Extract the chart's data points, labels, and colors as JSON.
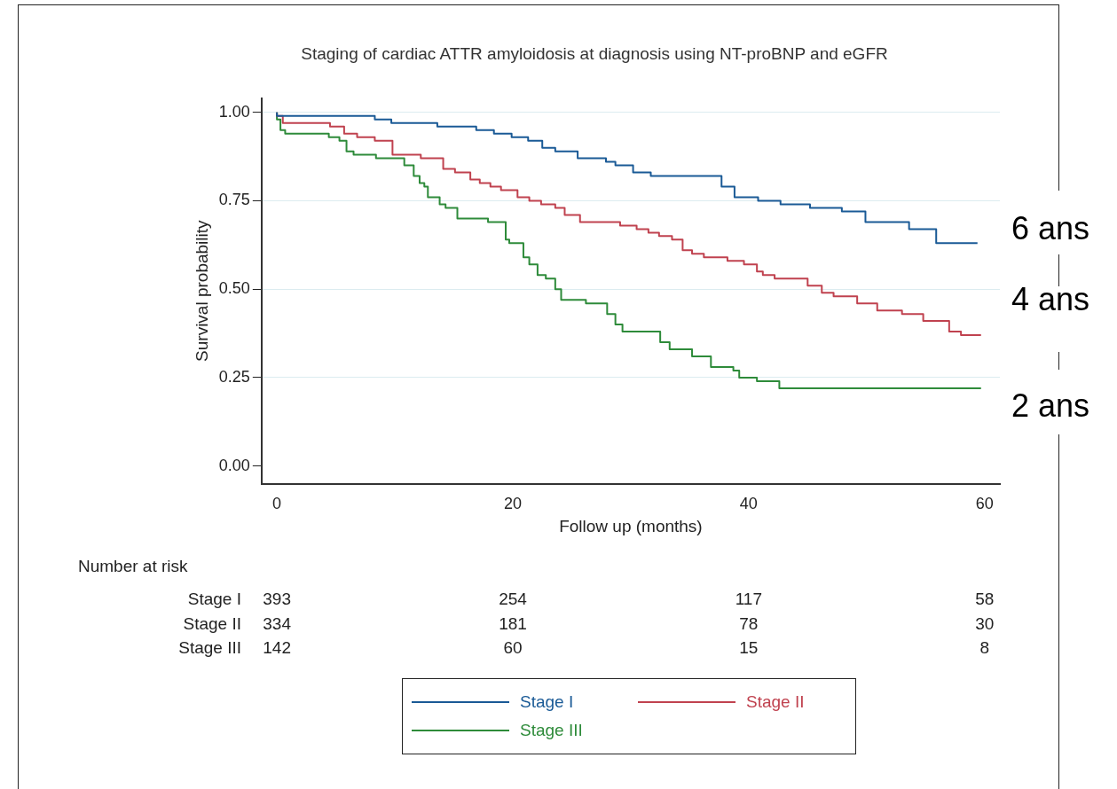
{
  "chart_data": {
    "type": "step",
    "title": "Staging of cardiac ATTR amyloidosis at diagnosis using NT-proBNP and eGFR",
    "xlabel": "Follow up (months)",
    "ylabel": "Survival probability",
    "xlim": [
      -1.3,
      61.3
    ],
    "xticks": [
      0,
      20,
      40,
      60
    ],
    "ylim": [
      -0.05,
      1.04
    ],
    "yticks": [
      {
        "value": 0,
        "label": "0.00"
      },
      {
        "value": 0.25,
        "label": "0.25"
      },
      {
        "value": 0.5,
        "label": "0.50"
      },
      {
        "value": 0.75,
        "label": "0.75"
      },
      {
        "value": 1,
        "label": "1.00"
      }
    ],
    "grid": "y",
    "legend": "bottom",
    "line_style": "solid",
    "marker": "none",
    "series": [
      {
        "name": "Stage I",
        "color": "#1a5a96",
        "x": [
          0,
          6.9,
          8.3,
          9.7,
          13.6,
          16.9,
          18.4,
          19.9,
          21.3,
          22.5,
          23.6,
          24.5,
          25.5,
          27.9,
          28.7,
          30.2,
          31.7,
          37.7,
          38.8,
          40.8,
          42.7,
          45.2,
          47.9,
          49.9,
          53.6,
          55.9,
          57.8,
          59.4
        ],
        "values": [
          1,
          0.99,
          0.99,
          0.98,
          0.97,
          0.96,
          0.95,
          0.94,
          0.93,
          0.92,
          0.9,
          0.89,
          0.89,
          0.87,
          0.86,
          0.85,
          0.83,
          0.82,
          0.79,
          0.76,
          0.75,
          0.74,
          0.73,
          0.72,
          0.69,
          0.67,
          0.63,
          0.63
        ]
      },
      {
        "name": "Stage II",
        "color": "#c0424f",
        "x": [
          0,
          0.5,
          2.5,
          4.5,
          5.7,
          6.8,
          8.3,
          9.8,
          12.2,
          14.1,
          15.1,
          16.4,
          17.2,
          18.1,
          19,
          20.4,
          21.4,
          22.4,
          23.6,
          24.4,
          25.7,
          27.2,
          29.1,
          30.5,
          31.5,
          32.4,
          33.5,
          34.4,
          35.2,
          36.2,
          38.2,
          39.6,
          40.7,
          41.2,
          42.2,
          45,
          46.2,
          47.2,
          49.2,
          50.9,
          53,
          54.8,
          57,
          58,
          59.2,
          59.7
        ],
        "values": [
          1,
          0.99,
          0.97,
          0.97,
          0.96,
          0.94,
          0.93,
          0.92,
          0.88,
          0.87,
          0.84,
          0.83,
          0.81,
          0.8,
          0.79,
          0.78,
          0.76,
          0.75,
          0.74,
          0.73,
          0.71,
          0.69,
          0.69,
          0.68,
          0.67,
          0.66,
          0.65,
          0.64,
          0.61,
          0.6,
          0.59,
          0.58,
          0.57,
          0.55,
          0.54,
          0.53,
          0.51,
          0.49,
          0.48,
          0.46,
          0.44,
          0.43,
          0.41,
          0.38,
          0.37,
          0.37
        ]
      },
      {
        "name": "Stage III",
        "color": "#2e8b3a",
        "x": [
          0,
          0.3,
          0.7,
          3.3,
          4.4,
          5.3,
          5.9,
          6.5,
          8.4,
          10.8,
          11.6,
          12.1,
          12.5,
          12.8,
          13.8,
          14.3,
          15.3,
          17.9,
          19.4,
          19.7,
          20.9,
          21.4,
          22.1,
          22.8,
          23.6,
          24.1,
          26.2,
          28,
          28.7,
          29.3,
          32.5,
          33.3,
          35.2,
          36.8,
          38.7,
          39.2,
          40.7,
          42.6,
          49.1,
          59.7
        ],
        "values": [
          1,
          0.98,
          0.95,
          0.94,
          0.94,
          0.93,
          0.92,
          0.89,
          0.88,
          0.87,
          0.85,
          0.82,
          0.8,
          0.79,
          0.76,
          0.74,
          0.73,
          0.7,
          0.69,
          0.64,
          0.63,
          0.59,
          0.57,
          0.54,
          0.53,
          0.5,
          0.47,
          0.46,
          0.43,
          0.4,
          0.38,
          0.35,
          0.33,
          0.31,
          0.28,
          0.27,
          0.25,
          0.24,
          0.22,
          0.22
        ]
      }
    ],
    "annotations": [
      "6 ans",
      "4 ans",
      "2 ans",
      "Number at risk",
      "Stage I",
      "393",
      "254",
      "117",
      "58",
      "Stage II",
      "334",
      "181",
      "78",
      "30",
      "Stage III",
      "142",
      "60",
      "15",
      "8"
    ]
  }
}
